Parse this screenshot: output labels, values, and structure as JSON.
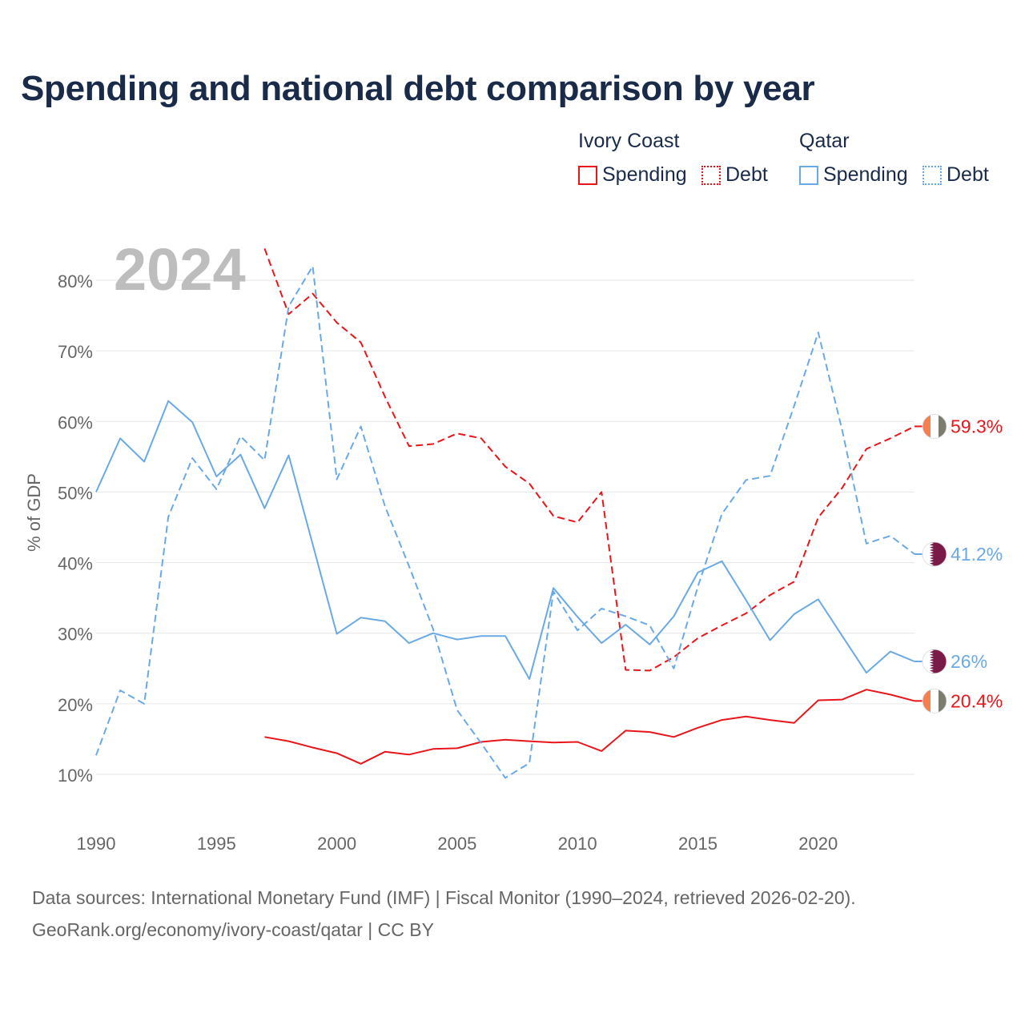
{
  "chart_data": {
    "type": "line",
    "title": "Spending and national debt comparison by year",
    "year_label": "2024",
    "ylabel": "% of GDP",
    "xlabel": "",
    "xlim": [
      1990,
      2024
    ],
    "ylim": [
      5,
      87
    ],
    "x_ticks": [
      1990,
      1995,
      2000,
      2005,
      2010,
      2015,
      2020
    ],
    "y_ticks": [
      10,
      20,
      30,
      40,
      50,
      60,
      70,
      80
    ],
    "y_tick_labels": [
      "10%",
      "20%",
      "30%",
      "40%",
      "50%",
      "60%",
      "70%",
      "80%"
    ],
    "legend": {
      "groups": [
        {
          "country": "Ivory Coast",
          "items": [
            "Spending",
            "Debt"
          ]
        },
        {
          "country": "Qatar",
          "items": [
            "Spending",
            "Debt"
          ]
        }
      ]
    },
    "series": [
      {
        "name": "Ivory Coast Spending",
        "country": "Ivory Coast",
        "metric": "Spending",
        "style": "solid",
        "color": "#e8161b",
        "flag": "ivory-coast",
        "end_label": "20.4%",
        "x": [
          1997,
          1998,
          1999,
          2000,
          2001,
          2002,
          2003,
          2004,
          2005,
          2006,
          2007,
          2008,
          2009,
          2010,
          2011,
          2012,
          2013,
          2014,
          2015,
          2016,
          2017,
          2018,
          2019,
          2020,
          2021,
          2022,
          2023,
          2024
        ],
        "values": [
          15.3,
          14.7,
          13.8,
          13.0,
          11.5,
          13.2,
          12.8,
          13.6,
          13.7,
          14.6,
          14.9,
          14.7,
          14.5,
          14.6,
          13.3,
          16.2,
          16.0,
          15.3,
          16.6,
          17.7,
          18.2,
          17.7,
          17.3,
          20.5,
          20.6,
          22.0,
          21.3,
          20.4
        ]
      },
      {
        "name": "Ivory Coast Debt",
        "country": "Ivory Coast",
        "metric": "Debt",
        "style": "dashed",
        "color": "#e8161b",
        "flag": "ivory-coast",
        "end_label": "59.3%",
        "x": [
          1997,
          1998,
          1999,
          2000,
          2001,
          2002,
          2003,
          2004,
          2005,
          2006,
          2007,
          2008,
          2009,
          2010,
          2011,
          2012,
          2013,
          2014,
          2015,
          2016,
          2017,
          2018,
          2019,
          2020,
          2021,
          2022,
          2023,
          2024
        ],
        "values": [
          84.5,
          75.2,
          78.1,
          74.0,
          71.2,
          63.5,
          56.5,
          56.8,
          58.3,
          57.6,
          53.6,
          51.2,
          46.6,
          45.7,
          50.0,
          24.8,
          24.7,
          26.6,
          29.3,
          31.1,
          32.8,
          35.4,
          37.3,
          46.4,
          50.6,
          56.1,
          57.6,
          59.3
        ]
      },
      {
        "name": "Qatar Spending",
        "country": "Qatar",
        "metric": "Spending",
        "style": "solid",
        "color": "#6aaae4",
        "flag": "qatar",
        "end_label": "26%",
        "x": [
          1990,
          1991,
          1992,
          1993,
          1994,
          1995,
          1996,
          1997,
          1998,
          1999,
          2000,
          2001,
          2002,
          2003,
          2004,
          2005,
          2006,
          2007,
          2008,
          2009,
          2010,
          2011,
          2012,
          2013,
          2014,
          2015,
          2016,
          2017,
          2018,
          2019,
          2020,
          2021,
          2022,
          2023,
          2024
        ],
        "values": [
          50.0,
          57.6,
          54.3,
          62.9,
          59.9,
          52.2,
          55.3,
          47.7,
          55.2,
          42.6,
          29.9,
          32.2,
          31.7,
          28.6,
          30.0,
          29.1,
          29.6,
          29.6,
          23.5,
          36.4,
          32.3,
          28.6,
          31.2,
          28.4,
          32.4,
          38.6,
          40.2,
          34.7,
          29.0,
          32.7,
          34.8,
          29.6,
          24.4,
          27.4,
          26.0
        ]
      },
      {
        "name": "Qatar Debt",
        "country": "Qatar",
        "metric": "Debt",
        "style": "dashed",
        "color": "#6aaae4",
        "flag": "qatar",
        "end_label": "41.2%",
        "x": [
          1990,
          1991,
          1992,
          1993,
          1994,
          1995,
          1996,
          1997,
          1998,
          1999,
          2000,
          2001,
          2002,
          2003,
          2004,
          2005,
          2006,
          2007,
          2008,
          2009,
          2010,
          2011,
          2012,
          2013,
          2014,
          2015,
          2016,
          2017,
          2018,
          2019,
          2020,
          2021,
          2022,
          2023,
          2024
        ],
        "values": [
          12.7,
          21.9,
          20.0,
          46.5,
          54.8,
          50.4,
          57.9,
          54.5,
          76.3,
          82.0,
          51.8,
          59.3,
          48.0,
          39.5,
          30.6,
          19.1,
          14.4,
          9.5,
          11.6,
          35.9,
          30.4,
          33.5,
          32.4,
          31.1,
          25.0,
          36.6,
          46.9,
          51.7,
          52.3,
          62.2,
          72.6,
          58.7,
          42.7,
          43.8,
          41.2
        ]
      }
    ]
  },
  "legend_labels": {
    "ivory_coast": "Ivory Coast",
    "qatar": "Qatar",
    "spending": "Spending",
    "debt": "Debt"
  },
  "colors": {
    "ivory_coast": "#e8161b",
    "qatar": "#6aaae4",
    "title": "#1a2b4a",
    "grid": "#e6e6e6",
    "axis_text": "#666666",
    "year_watermark": "#bdbdbd"
  },
  "footer": {
    "line1": "Data sources: International Monetary Fund (IMF) | Fiscal Monitor (1990–2024, retrieved 2026-02-20).",
    "line2": "GeoRank.org/economy/ivory-coast/qatar | CC BY"
  }
}
